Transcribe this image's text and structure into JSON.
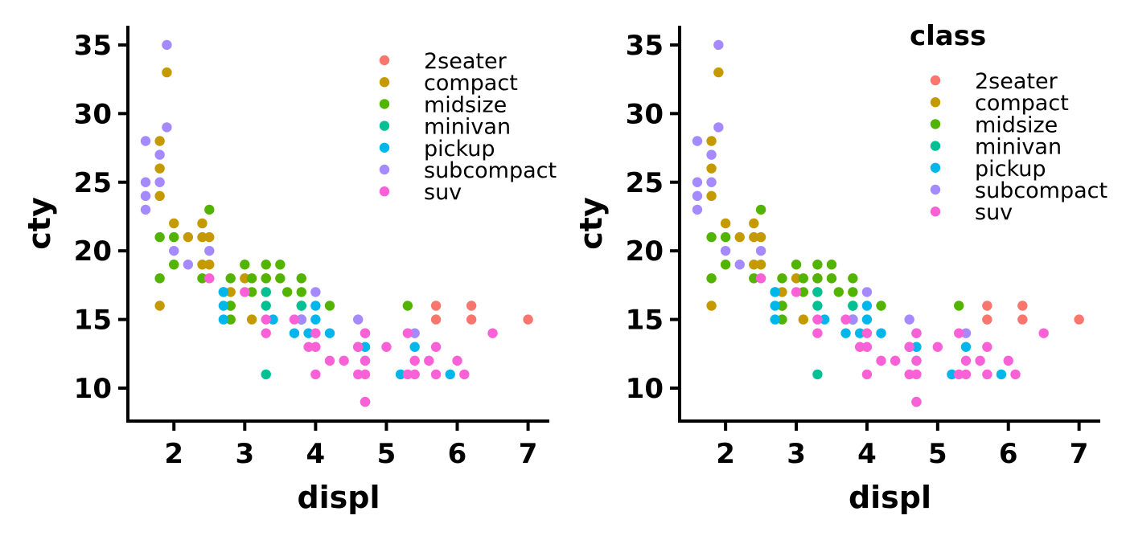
{
  "chart_data": [
    {
      "type": "scatter",
      "xlabel": "displ",
      "ylabel": "cty",
      "xlim": [
        1.35,
        7.3
      ],
      "ylim": [
        7.6,
        36.4
      ],
      "x_ticks": [
        2,
        3,
        4,
        5,
        6,
        7
      ],
      "y_ticks": [
        10,
        15,
        20,
        25,
        30,
        35
      ],
      "legend_title": "",
      "legend_position": "top-right",
      "grid": false,
      "series": [
        {
          "name": "2seater",
          "color": "#F8766D",
          "points": [
            [
              5.7,
              15
            ],
            [
              5.7,
              16
            ],
            [
              6.2,
              15
            ],
            [
              6.2,
              16
            ],
            [
              7.0,
              15
            ]
          ]
        },
        {
          "name": "compact",
          "color": "#C49A00",
          "points": [
            [
              1.8,
              16
            ],
            [
              1.8,
              24
            ],
            [
              1.8,
              26
            ],
            [
              1.8,
              28
            ],
            [
              1.9,
              33
            ],
            [
              2.0,
              22
            ],
            [
              2.2,
              21
            ],
            [
              2.4,
              19
            ],
            [
              2.4,
              21
            ],
            [
              2.4,
              22
            ],
            [
              2.5,
              19
            ],
            [
              2.5,
              21
            ],
            [
              2.8,
              16
            ],
            [
              2.8,
              17
            ],
            [
              3.0,
              18
            ],
            [
              3.1,
              15
            ],
            [
              3.3,
              17
            ],
            [
              3.3,
              18
            ]
          ]
        },
        {
          "name": "midsize",
          "color": "#53B400",
          "points": [
            [
              1.8,
              18
            ],
            [
              1.8,
              21
            ],
            [
              2.0,
              19
            ],
            [
              2.0,
              21
            ],
            [
              2.4,
              18
            ],
            [
              2.5,
              23
            ],
            [
              2.8,
              15
            ],
            [
              2.8,
              16
            ],
            [
              2.8,
              18
            ],
            [
              3.0,
              19
            ],
            [
              3.1,
              17
            ],
            [
              3.1,
              18
            ],
            [
              3.3,
              18
            ],
            [
              3.3,
              19
            ],
            [
              3.5,
              18
            ],
            [
              3.5,
              19
            ],
            [
              3.6,
              17
            ],
            [
              3.8,
              15
            ],
            [
              3.8,
              16
            ],
            [
              3.8,
              17
            ],
            [
              3.8,
              18
            ],
            [
              4.2,
              16
            ],
            [
              5.3,
              16
            ]
          ]
        },
        {
          "name": "minivan",
          "color": "#00C094",
          "points": [
            [
              2.7,
              17
            ],
            [
              3.3,
              11
            ],
            [
              3.3,
              16
            ],
            [
              3.3,
              17
            ],
            [
              3.8,
              15
            ],
            [
              3.8,
              16
            ]
          ]
        },
        {
          "name": "pickup",
          "color": "#00B6EB",
          "points": [
            [
              2.7,
              15
            ],
            [
              2.7,
              16
            ],
            [
              2.7,
              17
            ],
            [
              3.4,
              15
            ],
            [
              3.7,
              14
            ],
            [
              3.9,
              14
            ],
            [
              4.0,
              15
            ],
            [
              4.0,
              16
            ],
            [
              4.2,
              14
            ],
            [
              4.6,
              13
            ],
            [
              4.7,
              9
            ],
            [
              4.7,
              12
            ],
            [
              4.7,
              13
            ],
            [
              4.7,
              14
            ],
            [
              5.2,
              11
            ],
            [
              5.4,
              13
            ],
            [
              5.9,
              11
            ]
          ]
        },
        {
          "name": "subcompact",
          "color": "#A58AFF",
          "points": [
            [
              1.6,
              23
            ],
            [
              1.6,
              24
            ],
            [
              1.6,
              25
            ],
            [
              1.6,
              28
            ],
            [
              1.8,
              25
            ],
            [
              1.8,
              27
            ],
            [
              1.9,
              29
            ],
            [
              1.9,
              35
            ],
            [
              2.0,
              20
            ],
            [
              2.2,
              19
            ],
            [
              2.5,
              20
            ],
            [
              3.8,
              15
            ],
            [
              4.0,
              17
            ],
            [
              4.6,
              15
            ],
            [
              5.4,
              14
            ]
          ]
        },
        {
          "name": "suv",
          "color": "#FB61D7",
          "points": [
            [
              2.5,
              18
            ],
            [
              3.0,
              17
            ],
            [
              3.3,
              14
            ],
            [
              3.3,
              15
            ],
            [
              3.7,
              15
            ],
            [
              3.9,
              13
            ],
            [
              4.0,
              11
            ],
            [
              4.0,
              13
            ],
            [
              4.0,
              14
            ],
            [
              4.2,
              12
            ],
            [
              4.4,
              12
            ],
            [
              4.6,
              11
            ],
            [
              4.6,
              13
            ],
            [
              4.7,
              9
            ],
            [
              4.7,
              11
            ],
            [
              4.7,
              12
            ],
            [
              4.7,
              14
            ],
            [
              5.0,
              13
            ],
            [
              5.3,
              11
            ],
            [
              5.3,
              14
            ],
            [
              5.4,
              11
            ],
            [
              5.4,
              12
            ],
            [
              5.6,
              12
            ],
            [
              5.7,
              11
            ],
            [
              5.7,
              13
            ],
            [
              6.0,
              12
            ],
            [
              6.1,
              11
            ],
            [
              6.5,
              14
            ]
          ]
        }
      ]
    },
    {
      "type": "scatter",
      "xlabel": "displ",
      "ylabel": "cty",
      "xlim": [
        1.35,
        7.3
      ],
      "ylim": [
        7.6,
        36.4
      ],
      "x_ticks": [
        2,
        3,
        4,
        5,
        6,
        7
      ],
      "y_ticks": [
        10,
        15,
        20,
        25,
        30,
        35
      ],
      "legend_title": "class",
      "legend_position": "top-right",
      "grid": false,
      "series": [
        {
          "name": "2seater",
          "color": "#F8766D",
          "points": [
            [
              5.7,
              15
            ],
            [
              5.7,
              16
            ],
            [
              6.2,
              15
            ],
            [
              6.2,
              16
            ],
            [
              7.0,
              15
            ]
          ]
        },
        {
          "name": "compact",
          "color": "#C49A00",
          "points": [
            [
              1.8,
              16
            ],
            [
              1.8,
              24
            ],
            [
              1.8,
              26
            ],
            [
              1.8,
              28
            ],
            [
              1.9,
              33
            ],
            [
              2.0,
              22
            ],
            [
              2.2,
              21
            ],
            [
              2.4,
              19
            ],
            [
              2.4,
              21
            ],
            [
              2.4,
              22
            ],
            [
              2.5,
              19
            ],
            [
              2.5,
              21
            ],
            [
              2.8,
              16
            ],
            [
              2.8,
              17
            ],
            [
              3.0,
              18
            ],
            [
              3.1,
              15
            ],
            [
              3.3,
              17
            ],
            [
              3.3,
              18
            ]
          ]
        },
        {
          "name": "midsize",
          "color": "#53B400",
          "points": [
            [
              1.8,
              18
            ],
            [
              1.8,
              21
            ],
            [
              2.0,
              19
            ],
            [
              2.0,
              21
            ],
            [
              2.4,
              18
            ],
            [
              2.5,
              23
            ],
            [
              2.8,
              15
            ],
            [
              2.8,
              16
            ],
            [
              2.8,
              18
            ],
            [
              3.0,
              19
            ],
            [
              3.1,
              17
            ],
            [
              3.1,
              18
            ],
            [
              3.3,
              18
            ],
            [
              3.3,
              19
            ],
            [
              3.5,
              18
            ],
            [
              3.5,
              19
            ],
            [
              3.6,
              17
            ],
            [
              3.8,
              15
            ],
            [
              3.8,
              16
            ],
            [
              3.8,
              17
            ],
            [
              3.8,
              18
            ],
            [
              4.2,
              16
            ],
            [
              5.3,
              16
            ]
          ]
        },
        {
          "name": "minivan",
          "color": "#00C094",
          "points": [
            [
              2.7,
              17
            ],
            [
              3.3,
              11
            ],
            [
              3.3,
              16
            ],
            [
              3.3,
              17
            ],
            [
              3.8,
              15
            ],
            [
              3.8,
              16
            ]
          ]
        },
        {
          "name": "pickup",
          "color": "#00B6EB",
          "points": [
            [
              2.7,
              15
            ],
            [
              2.7,
              16
            ],
            [
              2.7,
              17
            ],
            [
              3.4,
              15
            ],
            [
              3.7,
              14
            ],
            [
              3.9,
              14
            ],
            [
              4.0,
              15
            ],
            [
              4.0,
              16
            ],
            [
              4.2,
              14
            ],
            [
              4.6,
              13
            ],
            [
              4.7,
              9
            ],
            [
              4.7,
              12
            ],
            [
              4.7,
              13
            ],
            [
              4.7,
              14
            ],
            [
              5.2,
              11
            ],
            [
              5.4,
              13
            ],
            [
              5.9,
              11
            ]
          ]
        },
        {
          "name": "subcompact",
          "color": "#A58AFF",
          "points": [
            [
              1.6,
              23
            ],
            [
              1.6,
              24
            ],
            [
              1.6,
              25
            ],
            [
              1.6,
              28
            ],
            [
              1.8,
              25
            ],
            [
              1.8,
              27
            ],
            [
              1.9,
              29
            ],
            [
              1.9,
              35
            ],
            [
              2.0,
              20
            ],
            [
              2.2,
              19
            ],
            [
              2.5,
              20
            ],
            [
              3.8,
              15
            ],
            [
              4.0,
              17
            ],
            [
              4.6,
              15
            ],
            [
              5.4,
              14
            ]
          ]
        },
        {
          "name": "suv",
          "color": "#FB61D7",
          "points": [
            [
              2.5,
              18
            ],
            [
              3.0,
              17
            ],
            [
              3.3,
              14
            ],
            [
              3.3,
              15
            ],
            [
              3.7,
              15
            ],
            [
              3.9,
              13
            ],
            [
              4.0,
              11
            ],
            [
              4.0,
              13
            ],
            [
              4.0,
              14
            ],
            [
              4.2,
              12
            ],
            [
              4.4,
              12
            ],
            [
              4.6,
              11
            ],
            [
              4.6,
              13
            ],
            [
              4.7,
              9
            ],
            [
              4.7,
              11
            ],
            [
              4.7,
              12
            ],
            [
              4.7,
              14
            ],
            [
              5.0,
              13
            ],
            [
              5.3,
              11
            ],
            [
              5.3,
              14
            ],
            [
              5.4,
              11
            ],
            [
              5.4,
              12
            ],
            [
              5.6,
              12
            ],
            [
              5.7,
              11
            ],
            [
              5.7,
              13
            ],
            [
              6.0,
              12
            ],
            [
              6.1,
              11
            ],
            [
              6.5,
              14
            ]
          ]
        }
      ]
    }
  ]
}
